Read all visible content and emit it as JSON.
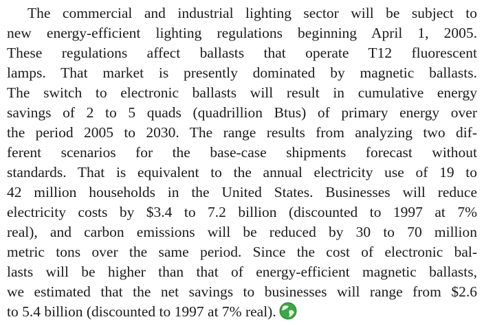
{
  "paragraph": {
    "lines": [
      "The commercial and industrial lighting sector will be subject to",
      "new energy-efficient lighting regulations beginning April 1, 2005.",
      "These regulations affect ballasts that operate T12 fluorescent",
      "lamps. That market is presently dominated by magnetic ballasts.",
      "The switch to electronic ballasts will result in cumulative energy",
      "savings of 2 to 5 quads (quadrillion Btus) of primary energy over",
      "the period 2005 to 2030. The range results from analyzing two dif-",
      "ferent scenarios for the base-case shipments forecast without",
      "standards. That is equivalent to the annual electricity use of 19 to",
      "42 million households in the United States. Businesses will reduce",
      "electricity costs by $3.4 to 7.2 billion (discounted to 1997 at 7%",
      "real), and carbon emissions will be reduced by 30 to 70 million",
      "metric tons over the same period. Since the cost of electronic bal-",
      "lasts will be higher than that of energy-efficient magnetic ballasts,",
      "we estimated that the net savings to businesses will range from $2.6",
      "to 5.4 billion (discounted to 1997 at 7% real)."
    ]
  }
}
